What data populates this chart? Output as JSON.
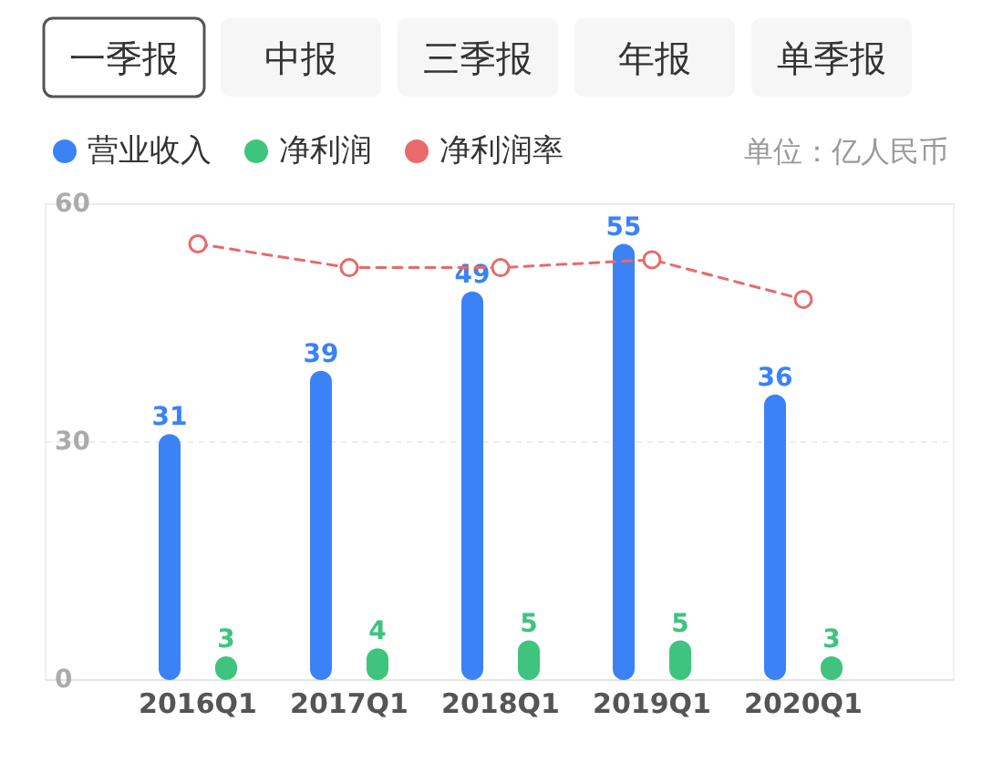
{
  "chart_data": {
    "type": "bar",
    "categories": [
      "2016Q1",
      "2017Q1",
      "2018Q1",
      "2019Q1",
      "2020Q1"
    ],
    "series": [
      {
        "name": "营业收入",
        "color": "#3b82f6",
        "values": [
          31,
          39,
          49,
          55,
          36
        ],
        "value_labels": [
          "31",
          "39",
          "49",
          "55",
          "36"
        ]
      },
      {
        "name": "净利润",
        "color": "#3ec47e",
        "values": [
          3,
          4,
          5,
          5,
          3
        ],
        "value_labels": [
          "3",
          "4",
          "5",
          "5",
          "3"
        ]
      },
      {
        "name": "净利润率",
        "type": "line",
        "color": "#e86a6a",
        "values": [
          55,
          52,
          52,
          53,
          48
        ]
      }
    ],
    "ylim": [
      0,
      60
    ],
    "yticks": [
      0,
      30,
      60
    ],
    "grid": "y",
    "legend": "top left",
    "marker": "circle",
    "line_style": "dashed",
    "annotations": [
      "一季报",
      "中报",
      "三季报",
      "年报",
      "单季报",
      "单位：亿人民币"
    ]
  }
}
